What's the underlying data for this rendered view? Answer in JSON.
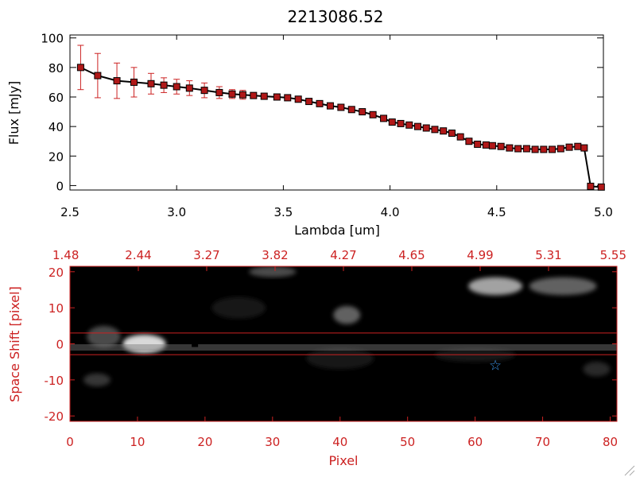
{
  "colors": {
    "axis_top": "#000000",
    "axis_bottom": "#cc2222",
    "marker_fill": "#b01818",
    "errorbar": "#cc2222",
    "line": "#000000",
    "star": "#3a8fe0"
  },
  "chart_data": [
    {
      "type": "line",
      "title": "2213086.52",
      "xlabel": "Lambda [um]",
      "ylabel": "Flux [mJy]",
      "xlim": [
        2.5,
        5.0
      ],
      "ylim": [
        -3,
        102
      ],
      "xticks": [
        "2.5",
        "3.0",
        "3.5",
        "4.0",
        "4.5",
        "5.0"
      ],
      "yticks": [
        "0",
        "20",
        "40",
        "60",
        "80",
        "100"
      ],
      "series": [
        {
          "x": [
            2.55,
            2.63,
            2.72,
            2.8,
            2.88,
            2.94,
            3.0,
            3.06,
            3.13,
            3.2,
            3.26,
            3.31,
            3.36,
            3.41,
            3.47,
            3.52,
            3.57,
            3.62,
            3.67,
            3.72,
            3.77,
            3.82,
            3.87,
            3.92,
            3.97,
            4.01,
            4.05,
            4.09,
            4.13,
            4.17,
            4.21,
            4.25,
            4.29,
            4.33,
            4.37,
            4.41,
            4.45,
            4.48,
            4.52,
            4.56,
            4.6,
            4.64,
            4.68,
            4.72,
            4.76,
            4.8,
            4.84,
            4.88,
            4.91,
            4.94,
            4.99
          ],
          "y": [
            80,
            74.5,
            71,
            70,
            69,
            68,
            67,
            66,
            64.5,
            63,
            62,
            61.5,
            61,
            60.5,
            60,
            59.5,
            58.5,
            57,
            55.5,
            54,
            53,
            51.5,
            50,
            48,
            45.5,
            43,
            42,
            41,
            40,
            39,
            38,
            37,
            35.5,
            33,
            30,
            28,
            27.5,
            27,
            26.5,
            25.5,
            25,
            25,
            24.5,
            24.5,
            24.5,
            25,
            26,
            26.5,
            25.5,
            -0.5,
            -1
          ],
          "err": [
            15,
            15,
            12,
            10,
            7,
            5,
            5,
            5,
            5,
            4,
            3,
            3,
            2,
            2,
            2,
            2,
            2,
            2,
            2,
            2,
            2,
            2,
            2,
            2,
            2,
            2,
            2,
            2,
            2,
            2,
            2,
            2,
            2,
            2,
            2,
            2,
            2,
            2,
            2,
            2,
            2,
            2,
            2,
            2,
            2,
            2,
            2,
            2,
            2,
            2,
            2
          ]
        }
      ]
    },
    {
      "type": "heatmap",
      "xlabel": "Pixel",
      "ylabel": "Space Shift [pixel]",
      "xlim": [
        0,
        81
      ],
      "ylim": [
        -21.5,
        21.5
      ],
      "xticks": [
        "0",
        "10",
        "20",
        "30",
        "40",
        "50",
        "60",
        "70",
        "80"
      ],
      "yticks": [
        "-20",
        "-10",
        "0",
        "10",
        "20"
      ],
      "top_ticks": [
        "1.48",
        "2.44",
        "3.27",
        "3.82",
        "4.27",
        "4.65",
        "4.99",
        "5.31",
        "5.55"
      ],
      "band_lines": [
        3,
        -3
      ],
      "marker": [
        18.5,
        0
      ],
      "star": [
        63,
        -6
      ],
      "blobs": [
        {
          "x": 11,
          "y": 0,
          "sx": 3.2,
          "sy": 2.6,
          "a": 1.0
        },
        {
          "x": 5,
          "y": 2,
          "sx": 2.5,
          "sy": 3.0,
          "a": 0.35
        },
        {
          "x": 63,
          "y": 16,
          "sx": 4.0,
          "sy": 2.5,
          "a": 0.75
        },
        {
          "x": 73,
          "y": 16,
          "sx": 5.0,
          "sy": 2.5,
          "a": 0.45
        },
        {
          "x": 41,
          "y": 8,
          "sx": 2.0,
          "sy": 2.5,
          "a": 0.45
        },
        {
          "x": 30,
          "y": 20,
          "sx": 3.5,
          "sy": 1.5,
          "a": 0.35
        },
        {
          "x": 4,
          "y": -10,
          "sx": 2.0,
          "sy": 1.8,
          "a": 0.25
        },
        {
          "x": 40,
          "y": -4,
          "sx": 5.0,
          "sy": 3.0,
          "a": 0.12
        },
        {
          "x": 78,
          "y": -7,
          "sx": 2.0,
          "sy": 2.0,
          "a": 0.2
        },
        {
          "x": 25,
          "y": 10,
          "sx": 4.0,
          "sy": 3.0,
          "a": 0.1
        },
        {
          "x": 60,
          "y": -3,
          "sx": 6.0,
          "sy": 2.0,
          "a": 0.12
        }
      ]
    }
  ]
}
